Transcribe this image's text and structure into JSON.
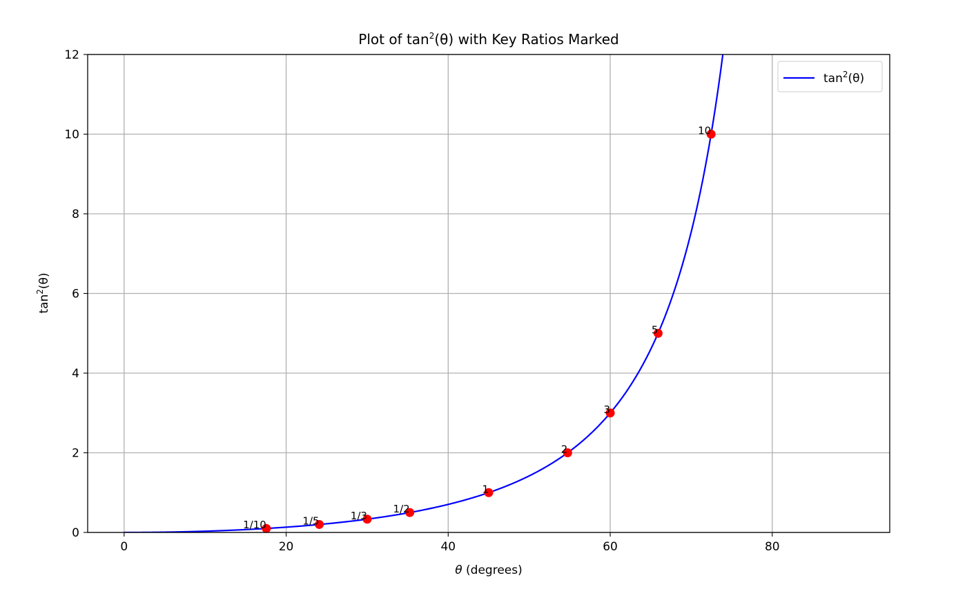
{
  "chart_data": {
    "type": "line",
    "title": {
      "pre": "Plot of tan",
      "sup": "2",
      "post": "(θ) with Key Ratios Marked"
    },
    "xlabel": {
      "sym": "θ",
      "rest": " (degrees)"
    },
    "ylabel": {
      "pre": "tan",
      "sup": "2",
      "post": "(θ)"
    },
    "xlim": [
      -4.5,
      94.5
    ],
    "ylim": [
      0,
      12
    ],
    "xticks": [
      0,
      20,
      40,
      60,
      80
    ],
    "yticks": [
      0,
      2,
      4,
      6,
      8,
      10,
      12
    ],
    "grid": true,
    "legend_position": "top-right",
    "series": [
      {
        "name": {
          "pre": "tan",
          "sup": "2",
          "post": "(θ)"
        },
        "function": "tan^2(theta)",
        "x_range": [
          0,
          90
        ],
        "color": "#0000ff"
      }
    ],
    "marked_points": {
      "color": "#ff0000",
      "points": [
        {
          "label": "1/10",
          "x": 17.55,
          "y": 0.1
        },
        {
          "label": "1/5",
          "x": 24.09,
          "y": 0.2
        },
        {
          "label": "1/3",
          "x": 30.0,
          "y": 0.333
        },
        {
          "label": "1/2",
          "x": 35.26,
          "y": 0.5
        },
        {
          "label": "1",
          "x": 45.0,
          "y": 1.0
        },
        {
          "label": "2",
          "x": 54.74,
          "y": 2.0
        },
        {
          "label": "3",
          "x": 60.0,
          "y": 3.0
        },
        {
          "label": "5",
          "x": 65.91,
          "y": 5.0
        },
        {
          "label": "10",
          "x": 72.45,
          "y": 10.0
        }
      ]
    }
  }
}
